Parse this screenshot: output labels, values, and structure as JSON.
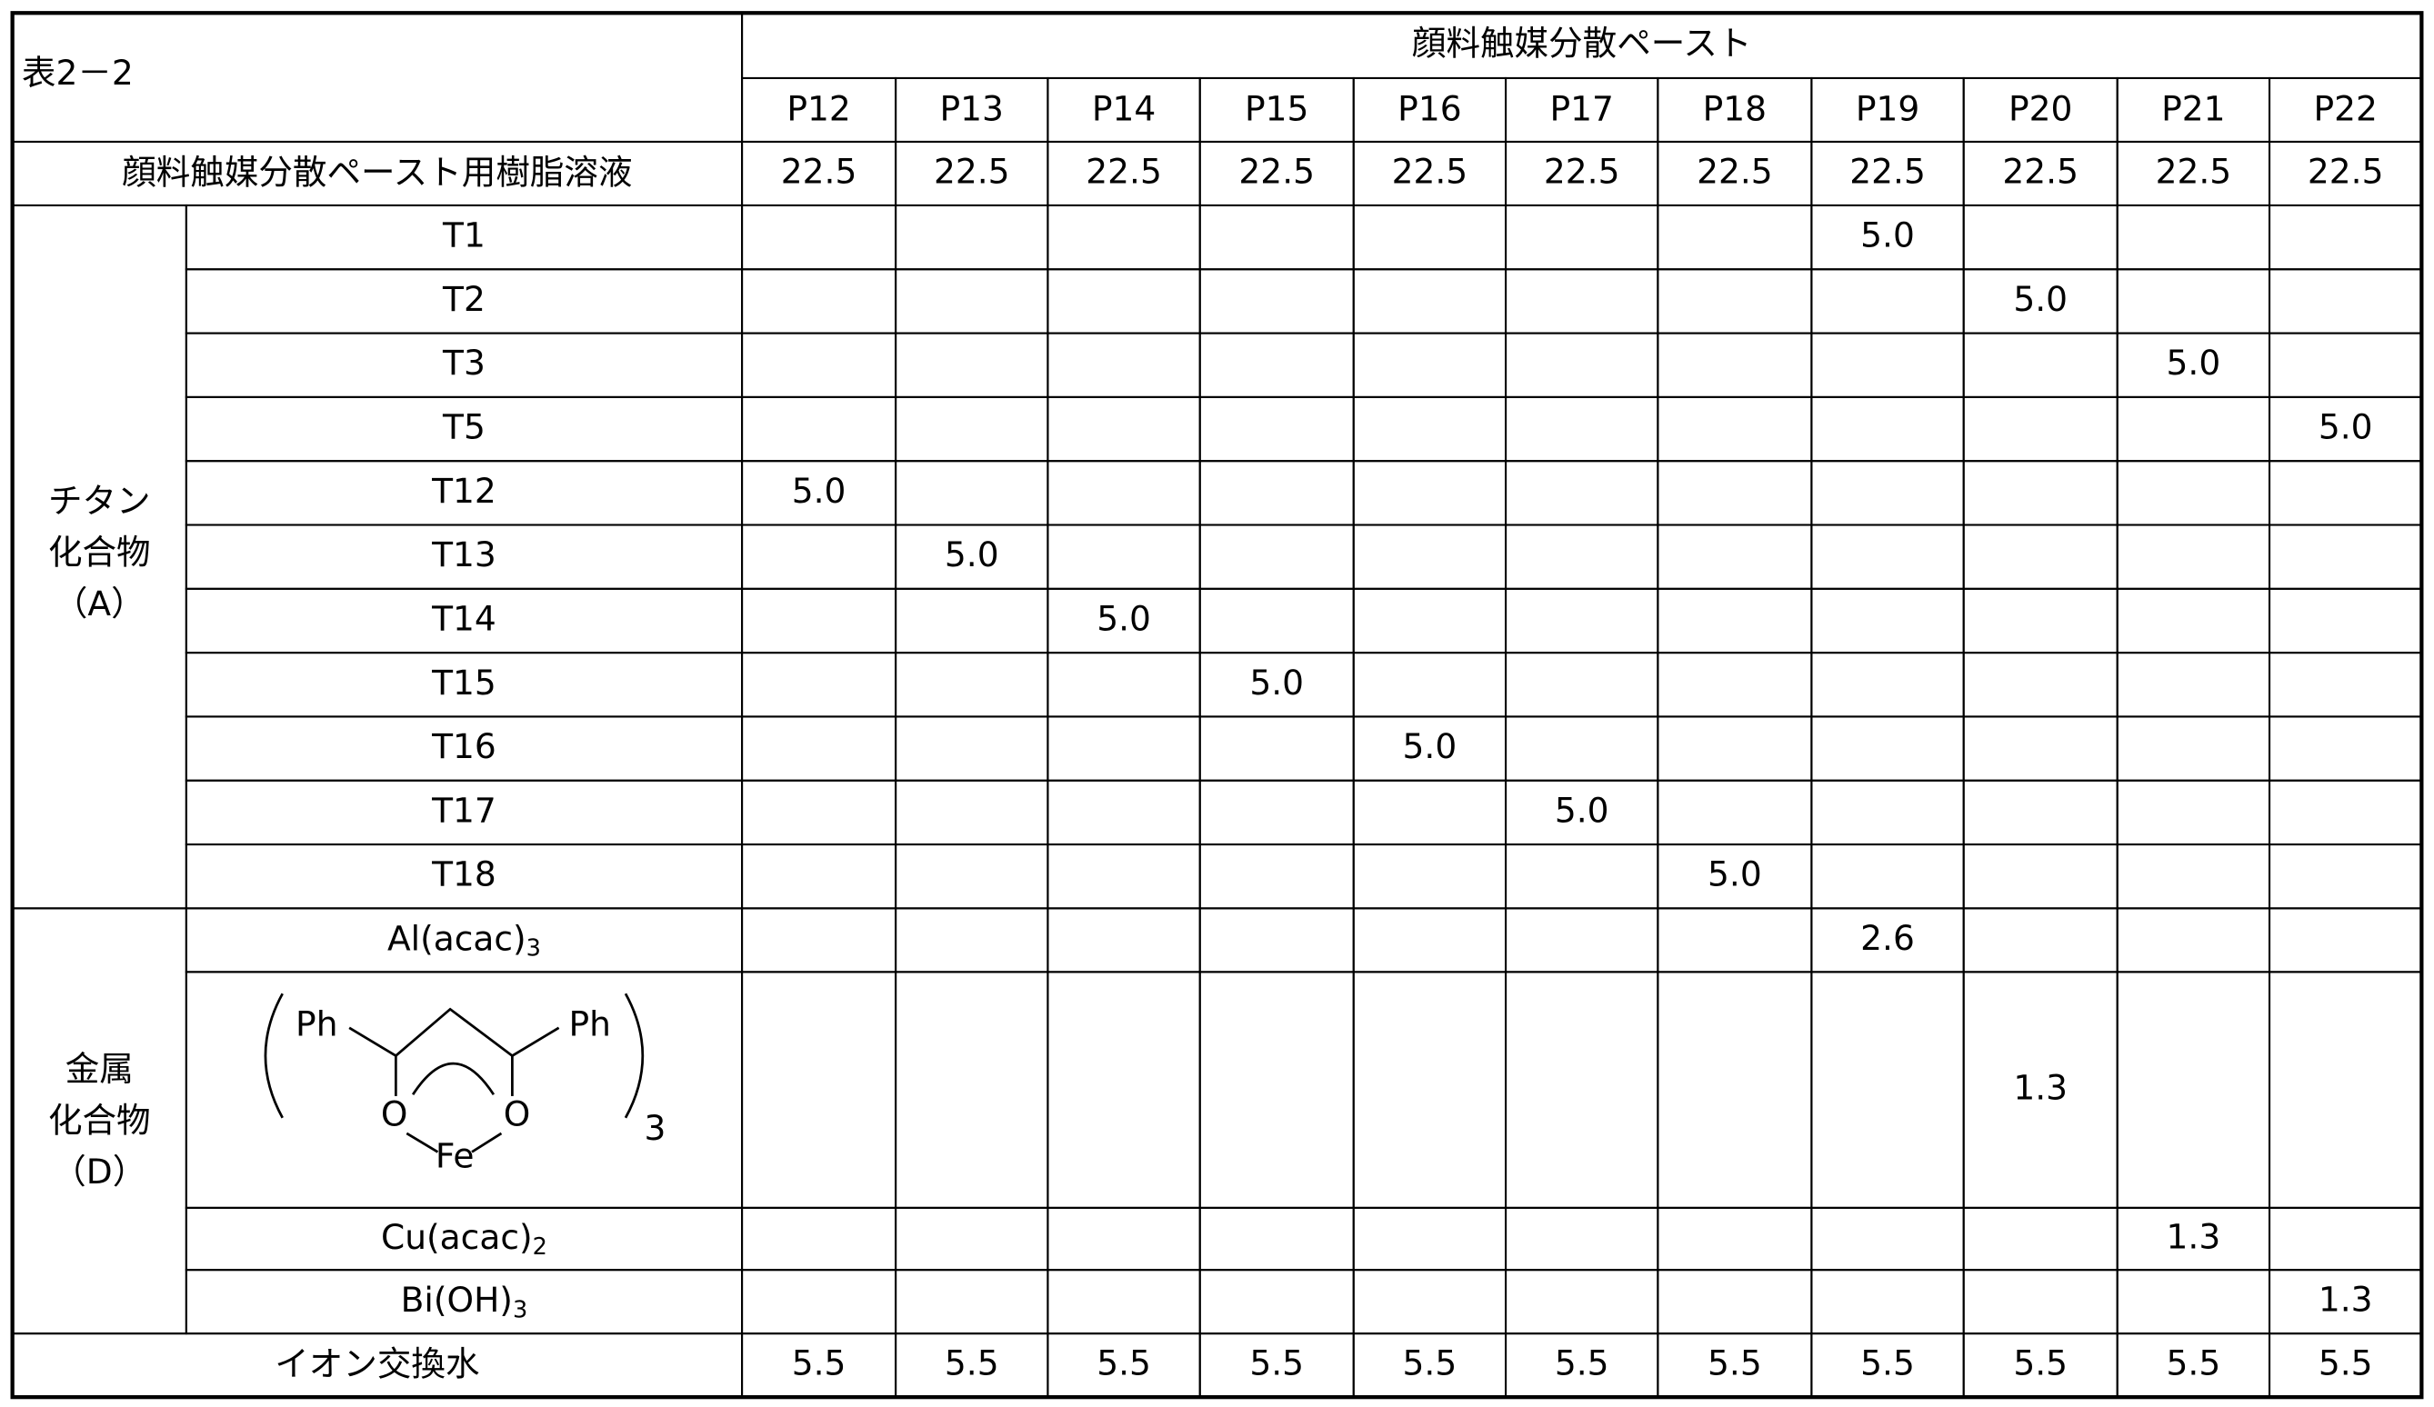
{
  "title": "表2－2",
  "header": {
    "group": "顔料触媒分散ペースト",
    "columns": [
      "P12",
      "P13",
      "P14",
      "P15",
      "P16",
      "P17",
      "P18",
      "P19",
      "P20",
      "P21",
      "P22"
    ]
  },
  "resin": {
    "label": "顔料触媒分散ペースト用樹脂溶液",
    "values": [
      "22.5",
      "22.5",
      "22.5",
      "22.5",
      "22.5",
      "22.5",
      "22.5",
      "22.5",
      "22.5",
      "22.5",
      "22.5"
    ]
  },
  "titanium": {
    "lines": [
      "チタン",
      "化合物",
      "（A）"
    ],
    "rows": [
      {
        "label": "T1",
        "values": [
          null,
          null,
          null,
          null,
          null,
          null,
          null,
          "5.0",
          null,
          null,
          null
        ]
      },
      {
        "label": "T2",
        "values": [
          null,
          null,
          null,
          null,
          null,
          null,
          null,
          null,
          "5.0",
          null,
          null
        ]
      },
      {
        "label": "T3",
        "values": [
          null,
          null,
          null,
          null,
          null,
          null,
          null,
          null,
          null,
          "5.0",
          null
        ]
      },
      {
        "label": "T5",
        "values": [
          null,
          null,
          null,
          null,
          null,
          null,
          null,
          null,
          null,
          null,
          "5.0"
        ]
      },
      {
        "label": "T12",
        "values": [
          "5.0",
          null,
          null,
          null,
          null,
          null,
          null,
          null,
          null,
          null,
          null
        ]
      },
      {
        "label": "T13",
        "values": [
          null,
          "5.0",
          null,
          null,
          null,
          null,
          null,
          null,
          null,
          null,
          null
        ]
      },
      {
        "label": "T14",
        "values": [
          null,
          null,
          "5.0",
          null,
          null,
          null,
          null,
          null,
          null,
          null,
          null
        ]
      },
      {
        "label": "T15",
        "values": [
          null,
          null,
          null,
          "5.0",
          null,
          null,
          null,
          null,
          null,
          null,
          null
        ]
      },
      {
        "label": "T16",
        "values": [
          null,
          null,
          null,
          null,
          "5.0",
          null,
          null,
          null,
          null,
          null,
          null
        ]
      },
      {
        "label": "T17",
        "values": [
          null,
          null,
          null,
          null,
          null,
          "5.0",
          null,
          null,
          null,
          null,
          null
        ]
      },
      {
        "label": "T18",
        "values": [
          null,
          null,
          null,
          null,
          null,
          null,
          "5.0",
          null,
          null,
          null,
          null
        ]
      }
    ]
  },
  "metal": {
    "lines": [
      "金属",
      "化合物",
      "（D）"
    ],
    "rows": [
      {
        "label": {
          "text": "Al(acac)",
          "sub": "3"
        },
        "values": [
          null,
          null,
          null,
          null,
          null,
          null,
          null,
          "2.6",
          null,
          null,
          null
        ]
      },
      {
        "structure": {
          "ph_left": "Ph",
          "ph_right": "Ph",
          "o_left": "O",
          "o_right": "O",
          "metal": "Fe",
          "count": "3"
        },
        "values": [
          null,
          null,
          null,
          null,
          null,
          null,
          null,
          null,
          "1.3",
          null,
          null
        ]
      },
      {
        "label": {
          "text": "Cu(acac)",
          "sub": "2"
        },
        "values": [
          null,
          null,
          null,
          null,
          null,
          null,
          null,
          null,
          null,
          "1.3",
          null
        ]
      },
      {
        "label": {
          "text": "Bi(OH)",
          "sub": "3"
        },
        "values": [
          null,
          null,
          null,
          null,
          null,
          null,
          null,
          null,
          null,
          null,
          "1.3"
        ]
      }
    ]
  },
  "water": {
    "label": "イオン交換水",
    "values": [
      "5.5",
      "5.5",
      "5.5",
      "5.5",
      "5.5",
      "5.5",
      "5.5",
      "5.5",
      "5.5",
      "5.5",
      "5.5"
    ]
  }
}
